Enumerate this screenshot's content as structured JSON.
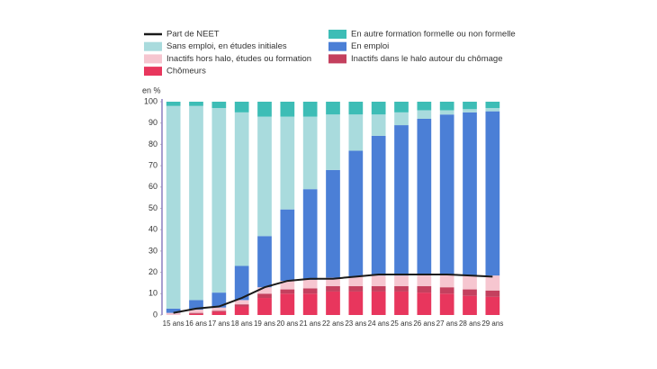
{
  "chart_data": {
    "type": "bar",
    "stacked": true,
    "y_label": "en %",
    "categories": [
      "15 ans",
      "16 ans",
      "17 ans",
      "18 ans",
      "19 ans",
      "20 ans",
      "21 ans",
      "22 ans",
      "23 ans",
      "24 ans",
      "25 ans",
      "26 ans",
      "27 ans",
      "28 ans",
      "29 ans"
    ],
    "series": [
      {
        "name": "Part de NEET",
        "type": "line",
        "color": "#1a1a1a",
        "values": [
          1,
          3,
          4,
          8,
          13,
          16,
          17,
          17,
          18,
          19,
          19,
          19,
          19,
          18.5,
          18
        ]
      },
      {
        "name": "En autre formation formelle ou non formelle",
        "color": "#3dbdb6",
        "values": [
          2,
          2,
          3,
          5,
          7,
          7,
          7,
          6,
          6,
          6,
          5,
          4,
          4,
          3.5,
          3
        ]
      },
      {
        "name": "Sans emploi, en études initiales",
        "color": "#a9dbdd",
        "values": [
          95,
          91,
          86.5,
          72,
          56,
          43.5,
          34,
          26,
          17,
          10,
          6,
          4,
          2,
          1.5,
          1.5
        ]
      },
      {
        "name": "En emploi",
        "color": "#4b7fd6",
        "values": [
          2,
          4.5,
          7,
          16,
          24,
          33.5,
          42.5,
          50.5,
          59,
          65.5,
          70.5,
          73,
          75,
          76.5,
          77
        ]
      },
      {
        "name": "Inactifs hors halo, études ou formation",
        "color": "#f6c6d0",
        "values": [
          1,
          1.5,
          1.5,
          2,
          3,
          4,
          4,
          4,
          4.5,
          5,
          5,
          5.5,
          6,
          6.5,
          7
        ]
      },
      {
        "name": "Inactifs dans le halo autour du chômage",
        "color": "#c4405e",
        "values": [
          0,
          0.5,
          0.5,
          1,
          2,
          2,
          2.5,
          2.5,
          2.5,
          2.5,
          2.5,
          3,
          3,
          3,
          3
        ]
      },
      {
        "name": "Chômeurs",
        "color": "#e8365d",
        "values": [
          0,
          0.5,
          1.5,
          4,
          8,
          10,
          10,
          11,
          11,
          11,
          11,
          10.5,
          10,
          9,
          8.5
        ]
      }
    ],
    "ylim": [
      0,
      100
    ],
    "yticks": [
      0,
      10,
      20,
      30,
      40,
      50,
      60,
      70,
      80,
      90,
      100
    ]
  }
}
